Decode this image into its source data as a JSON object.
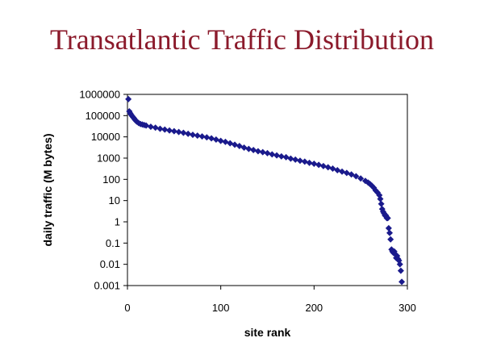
{
  "title": "Transatlantic Traffic Distribution",
  "colors": {
    "title": "#8b1a2b",
    "marker": "#1a1a8c",
    "frame": "#000000"
  },
  "chart_data": {
    "type": "scatter",
    "marker": "diamond",
    "title": "Transatlantic Traffic Distribution",
    "xlabel": "site rank",
    "ylabel": "daily traffic (M bytes)",
    "xscale": "linear",
    "yscale": "log",
    "xlim": [
      0,
      300
    ],
    "ylim": [
      0.001,
      1000000
    ],
    "x_ticks": [
      "0",
      "100",
      "200",
      "300"
    ],
    "y_ticks": [
      "1000000",
      "100000",
      "10000",
      "1000",
      "100",
      "10",
      "1",
      "0.1",
      "0.01",
      "0.001"
    ],
    "grid": false,
    "legend": false,
    "series": [
      {
        "x": [
          1,
          2,
          3,
          4,
          5,
          6,
          7,
          8,
          9,
          10,
          12,
          14,
          16,
          18,
          20,
          25,
          30,
          35,
          40,
          45,
          50,
          55,
          60,
          65,
          70,
          75,
          80,
          85,
          90,
          95,
          100,
          105,
          110,
          115,
          120,
          125,
          130,
          135,
          140,
          145,
          150,
          155,
          160,
          165,
          170,
          175,
          180,
          185,
          190,
          195,
          200,
          205,
          210,
          215,
          220,
          225,
          230,
          235,
          240,
          245,
          250,
          255,
          258,
          260,
          262,
          264,
          266,
          268,
          270,
          271,
          272,
          273,
          274,
          275,
          276,
          277,
          278,
          279,
          280,
          281,
          282,
          283,
          284,
          285,
          286,
          287,
          288,
          289,
          290,
          291,
          292,
          293,
          294
        ],
        "y": [
          600000,
          160000,
          130000,
          110000,
          95000,
          85000,
          75000,
          65000,
          58000,
          52000,
          45000,
          40000,
          38000,
          36000,
          34000,
          30000,
          27000,
          24000,
          22000,
          20000,
          18500,
          17000,
          15500,
          14000,
          12500,
          11500,
          10500,
          9500,
          8500,
          7500,
          6500,
          5800,
          5000,
          4300,
          3700,
          3100,
          2700,
          2400,
          2100,
          1900,
          1700,
          1500,
          1350,
          1200,
          1100,
          950,
          850,
          750,
          680,
          600,
          540,
          480,
          420,
          370,
          320,
          270,
          230,
          200,
          170,
          140,
          110,
          85,
          70,
          60,
          50,
          40,
          30,
          24,
          18,
          12,
          7,
          4,
          3,
          2.5,
          2,
          2,
          1.5,
          1.5,
          0.5,
          0.3,
          0.15,
          0.05,
          0.04,
          0.035,
          0.04,
          0.03,
          0.02,
          0.025,
          0.018,
          0.015,
          0.01,
          0.005,
          0.0015
        ]
      }
    ]
  }
}
